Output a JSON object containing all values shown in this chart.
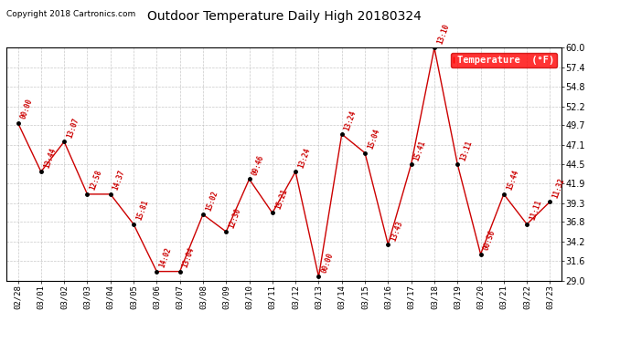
{
  "title": "Outdoor Temperature Daily High 20180324",
  "copyright": "Copyright 2018 Cartronics.com",
  "legend_label": "Temperature  (°F)",
  "dates": [
    "02/28",
    "03/01",
    "03/02",
    "03/03",
    "03/04",
    "03/05",
    "03/06",
    "03/07",
    "03/08",
    "03/09",
    "03/10",
    "03/11",
    "03/12",
    "03/13",
    "03/14",
    "03/15",
    "03/16",
    "03/17",
    "03/18",
    "03/19",
    "03/20",
    "03/21",
    "03/22",
    "03/23"
  ],
  "values": [
    50.0,
    43.5,
    47.5,
    40.5,
    40.5,
    36.5,
    30.2,
    30.2,
    37.8,
    35.5,
    42.5,
    38.0,
    43.5,
    29.5,
    48.5,
    46.0,
    33.8,
    44.5,
    60.0,
    44.5,
    32.5,
    40.5,
    36.5,
    39.5
  ],
  "time_labels": [
    "00:00",
    "13:44",
    "13:07",
    "12:58",
    "14:37",
    "15:81",
    "14:02",
    "13:04",
    "15:02",
    "12:30",
    "09:46",
    "15:21",
    "13:24",
    "00:00",
    "13:24",
    "15:04",
    "13:43",
    "15:41",
    "13:10",
    "13:11",
    "00:56",
    "15:44",
    "11:11",
    "11:32"
  ],
  "ylim": [
    29.0,
    60.0
  ],
  "yticks": [
    29.0,
    31.6,
    34.2,
    36.8,
    39.3,
    41.9,
    44.5,
    47.1,
    49.7,
    52.2,
    54.8,
    57.4,
    60.0
  ],
  "line_color": "#cc0000",
  "marker_color": "#000000",
  "label_color": "#cc0000",
  "title_color": "#000000",
  "bg_color": "#ffffff",
  "grid_color": "#bbbbbb",
  "legend_bg": "#ff0000",
  "legend_text_color": "#ffffff",
  "fig_width": 6.9,
  "fig_height": 3.75,
  "dpi": 100
}
